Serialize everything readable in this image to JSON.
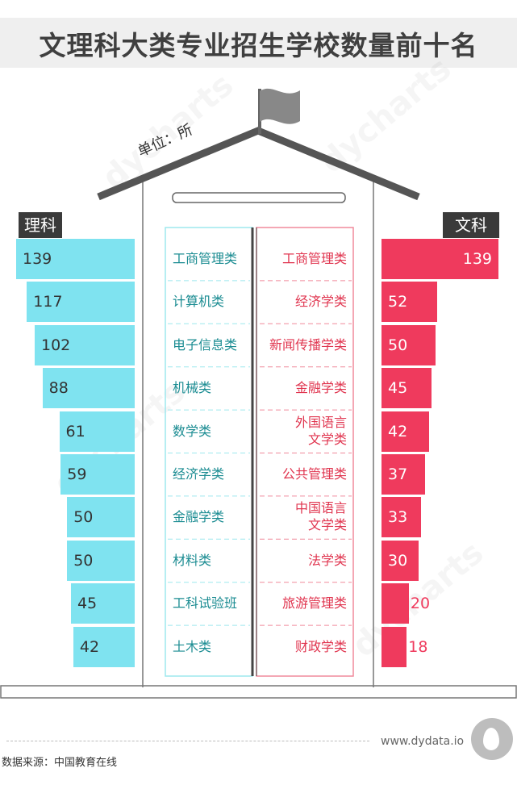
{
  "title": "文理科大类专业招生学校数量前十名",
  "unit": "单位：所",
  "labels": {
    "science": "理科",
    "liberal": "文科"
  },
  "website": "www.dydata.io",
  "source": "数据来源：中国教育在线",
  "colors": {
    "science": "#7fe3f0",
    "science_text": "#1b8c92",
    "liberal": "#ef3a5d",
    "roof": "#555555"
  },
  "chart_data": [
    {
      "type": "bar",
      "name": "理科",
      "categories": [
        "工商管理类",
        "计算机类",
        "电子信息类",
        "机械类",
        "数学类",
        "经济学类",
        "金融学类",
        "材料类",
        "工科试验班",
        "土木类"
      ],
      "values": [
        139,
        117,
        102,
        88,
        61,
        59,
        50,
        50,
        45,
        42
      ]
    },
    {
      "type": "bar",
      "name": "文科",
      "categories": [
        "工商管理类",
        "经济学类",
        "新闻传播学类",
        "金融学类",
        "外国语言文学类",
        "公共管理类",
        "中国语言文学类",
        "法学类",
        "旅游管理类",
        "财政学类"
      ],
      "values": [
        139,
        52,
        50,
        45,
        42,
        37,
        33,
        30,
        20,
        18
      ]
    }
  ]
}
